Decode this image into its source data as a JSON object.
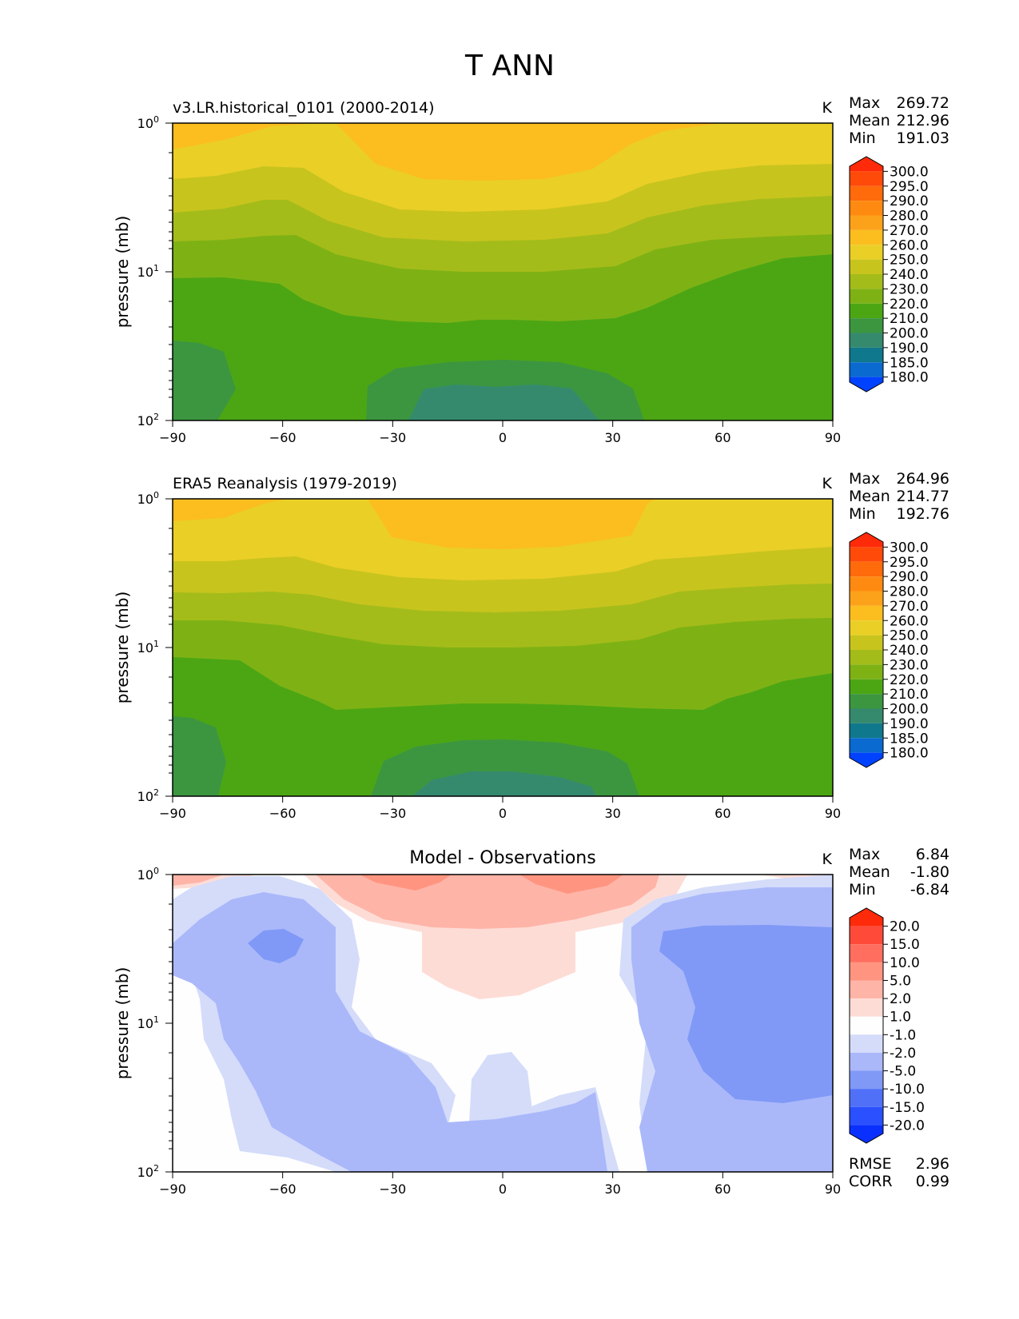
{
  "figure_title": "T ANN",
  "chart_data": [
    {
      "type": "contourf",
      "title": "v3.LR.historical_0101 (2000-2014)",
      "units": "K",
      "xlabel": "",
      "ylabel": "pressure (mb)",
      "xlim": [
        -90,
        90
      ],
      "ylim": [
        100,
        1
      ],
      "yscale": "log",
      "xticks": [
        -90,
        -60,
        -30,
        0,
        30,
        60,
        90
      ],
      "xtick_labels": [
        "−90",
        "−60",
        "−30",
        "0",
        "30",
        "60",
        "90"
      ],
      "stats": [
        {
          "label": "Max",
          "value": "269.72"
        },
        {
          "label": "Mean",
          "value": "212.96"
        },
        {
          "label": "Min",
          "value": "191.03"
        }
      ],
      "colorbar": {
        "labels": [
          "300.0",
          "295.0",
          "290.0",
          "280.0",
          "270.0",
          "260.0",
          "250.0",
          "240.0",
          "230.0",
          "220.0",
          "210.0",
          "200.0",
          "190.0",
          "185.0",
          "180.0"
        ],
        "colors": [
          "#ff2a0a",
          "#ff4a0a",
          "#ff6a0a",
          "#ff8a12",
          "#fca21a",
          "#fbbe1e",
          "#eacf26",
          "#c8c41e",
          "#a4bc1a",
          "#7eb214",
          "#4ca614",
          "#3c9640",
          "#358a6e",
          "#10788c",
          "#0a6ad0",
          "#0042ff"
        ]
      },
      "band_colors": [
        "#fbbe1e",
        "#eacf26",
        "#c8c41e",
        "#a4bc1a",
        "#7eb214",
        "#4ca614",
        "#3c9640",
        "#358a6e"
      ]
    },
    {
      "type": "contourf",
      "title": "ERA5 Reanalysis (1979-2019)",
      "units": "K",
      "xlabel": "",
      "ylabel": "pressure (mb)",
      "xlim": [
        -90,
        90
      ],
      "ylim": [
        100,
        1
      ],
      "yscale": "log",
      "xticks": [
        -90,
        -60,
        -30,
        0,
        30,
        60,
        90
      ],
      "xtick_labels": [
        "−90",
        "−60",
        "−30",
        "0",
        "30",
        "60",
        "90"
      ],
      "stats": [
        {
          "label": "Max",
          "value": "264.96"
        },
        {
          "label": "Mean",
          "value": "214.77"
        },
        {
          "label": "Min",
          "value": "192.76"
        }
      ],
      "colorbar": {
        "labels": [
          "300.0",
          "295.0",
          "290.0",
          "280.0",
          "270.0",
          "260.0",
          "250.0",
          "240.0",
          "230.0",
          "220.0",
          "210.0",
          "200.0",
          "190.0",
          "185.0",
          "180.0"
        ],
        "colors": [
          "#ff2a0a",
          "#ff4a0a",
          "#ff6a0a",
          "#ff8a12",
          "#fca21a",
          "#fbbe1e",
          "#eacf26",
          "#c8c41e",
          "#a4bc1a",
          "#7eb214",
          "#4ca614",
          "#3c9640",
          "#358a6e",
          "#10788c",
          "#0a6ad0",
          "#0042ff"
        ]
      },
      "band_colors": [
        "#fbbe1e",
        "#eacf26",
        "#c8c41e",
        "#a4bc1a",
        "#7eb214",
        "#4ca614",
        "#3c9640",
        "#358a6e"
      ]
    },
    {
      "type": "contourf",
      "title": "Model - Observations",
      "units": "K",
      "xlabel": "",
      "ylabel": "pressure (mb)",
      "xlim": [
        -90,
        90
      ],
      "ylim": [
        100,
        1
      ],
      "yscale": "log",
      "xticks": [
        -90,
        -60,
        -30,
        0,
        30,
        60,
        90
      ],
      "xtick_labels": [
        "−90",
        "−60",
        "−30",
        "0",
        "30",
        "60",
        "90"
      ],
      "stats": [
        {
          "label": "Max",
          "value": "6.84"
        },
        {
          "label": "Mean",
          "value": "-1.80"
        },
        {
          "label": "Min",
          "value": "-6.84"
        }
      ],
      "colorbar": {
        "labels": [
          "20.0",
          "15.0",
          "10.0",
          "5.0",
          "2.0",
          "1.0",
          "-1.0",
          "-2.0",
          "-5.0",
          "-10.0",
          "-15.0",
          "-20.0"
        ],
        "colors": [
          "#ff2a0a",
          "#ff4a3a",
          "#ff6e5e",
          "#ff9580",
          "#ffb4a8",
          "#fedcd6",
          "#fefefe",
          "#d4dcfa",
          "#aab8fa",
          "#8099f6",
          "#5070f8",
          "#2a50ff",
          "#0a30ff"
        ]
      },
      "metrics": [
        {
          "label": "RMSE",
          "value": "2.96"
        },
        {
          "label": "CORR",
          "value": "0.99"
        }
      ]
    }
  ]
}
